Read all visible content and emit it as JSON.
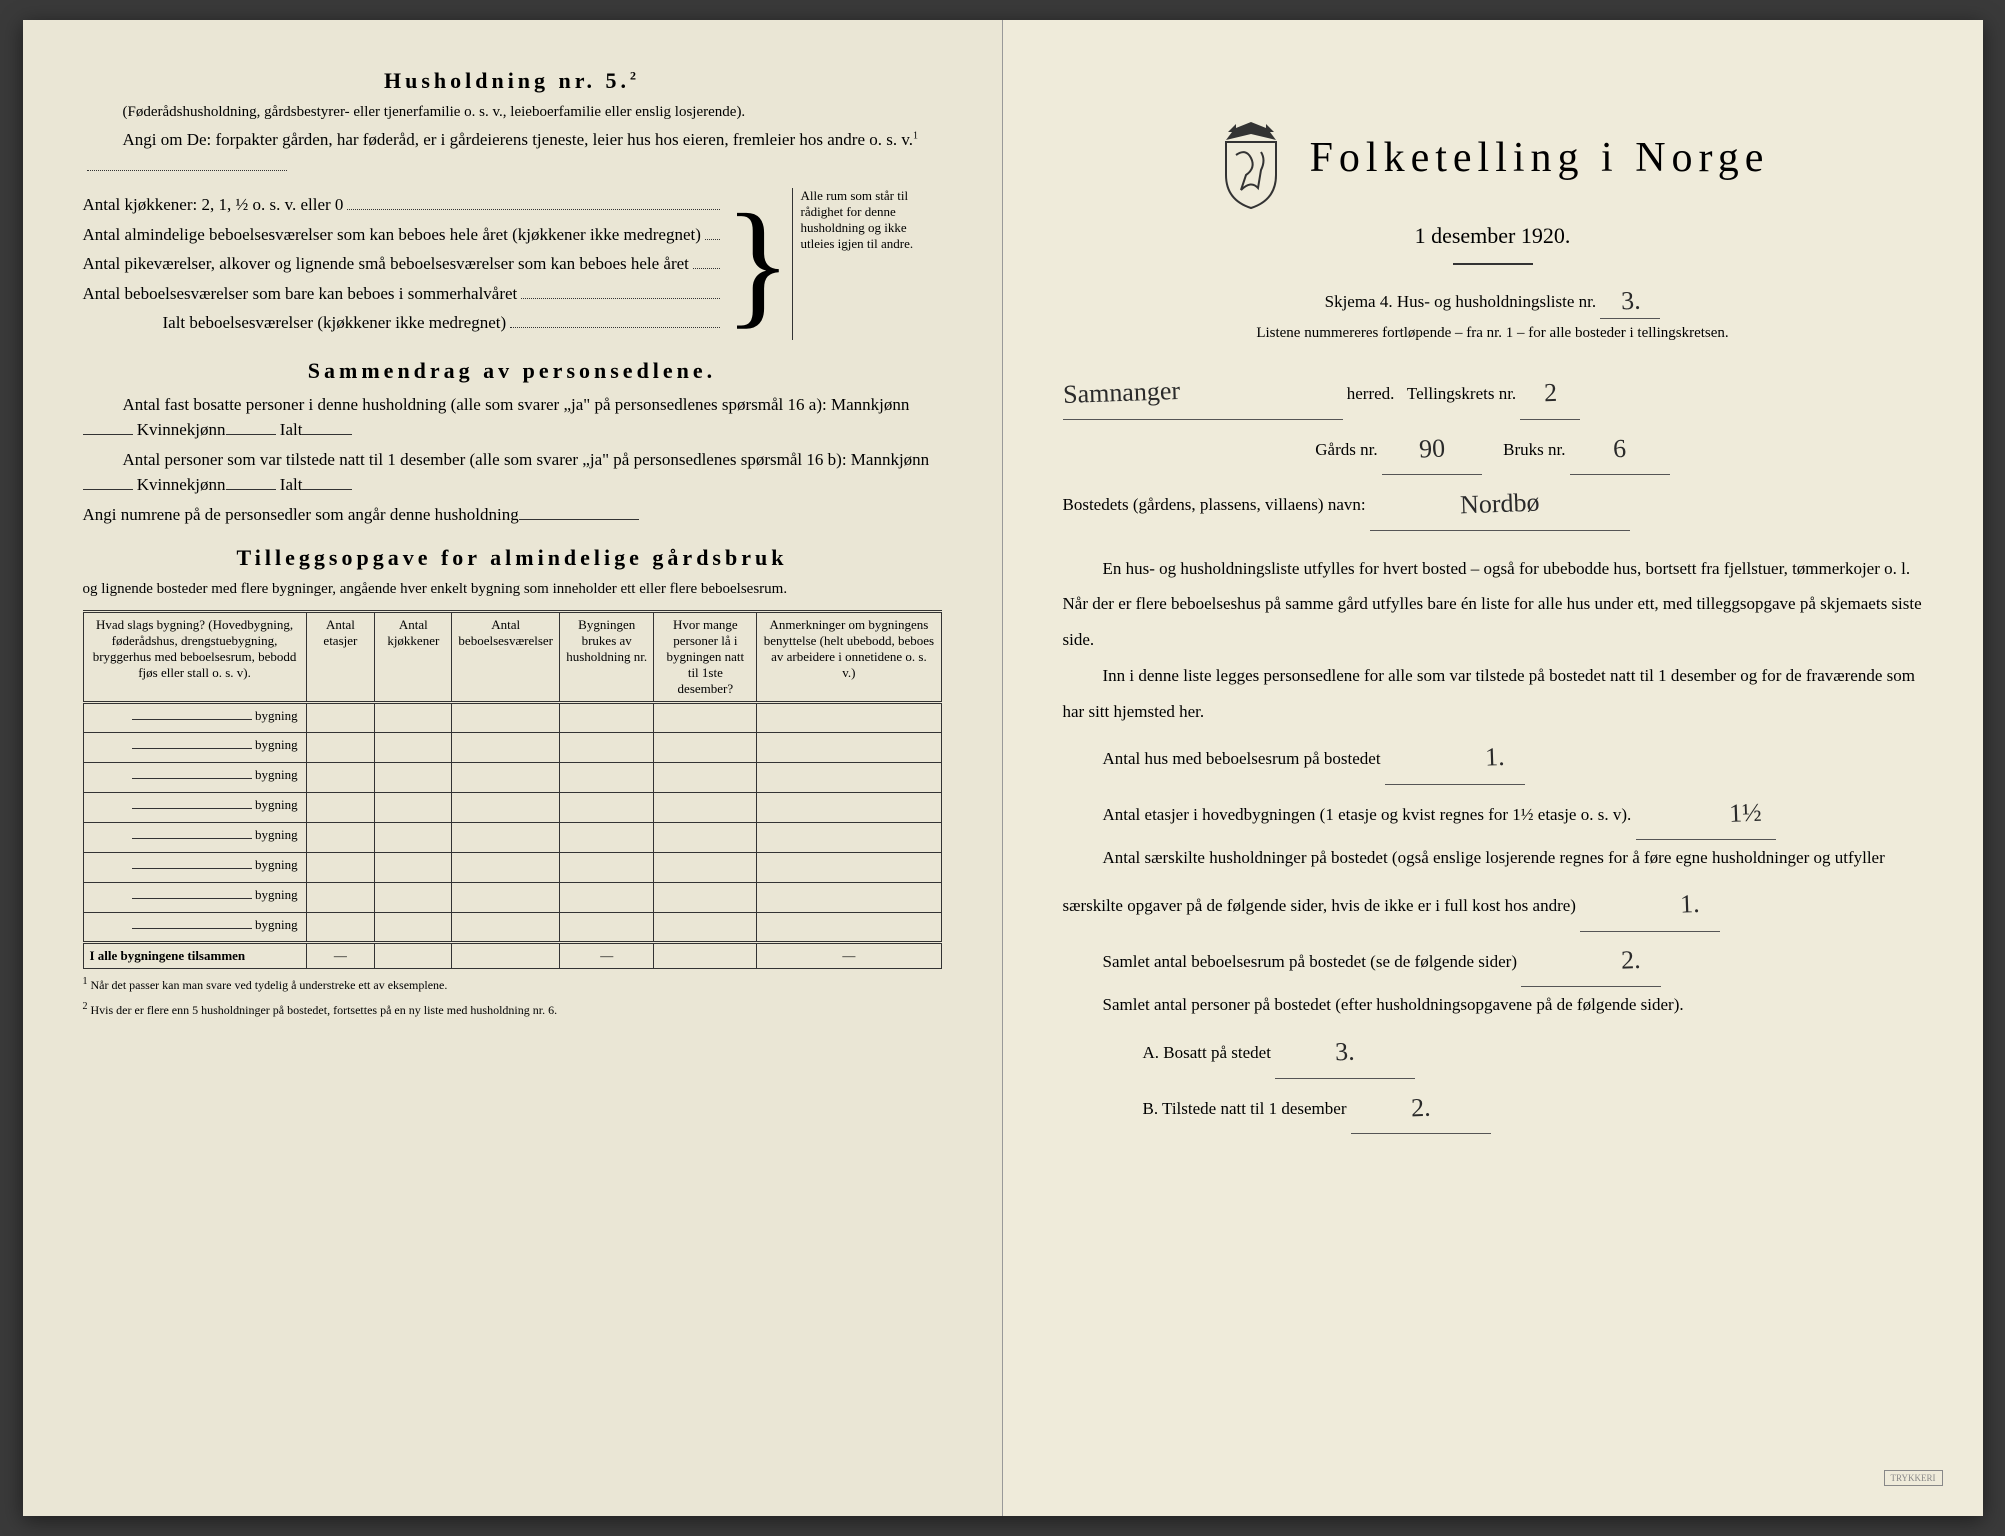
{
  "left": {
    "h5_title": "Husholdning nr. 5.",
    "h5_superscript": "2",
    "h5_sub": "(Føderådshusholdning, gårdsbestyrer- eller tjenerfamilie o. s. v., leieboerfamilie eller enslig losjerende).",
    "angi_line": "Angi om De: forpakter gården, har føderåd, er i gårdeierens tjeneste, leier hus hos eieren, fremleier hos andre o. s. v.",
    "angi_super": "1",
    "kitchens": "Antal kjøkkener: 2, 1, ½ o. s. v. eller 0",
    "rooms_all_year": "Antal almindelige beboelsesværelser som kan beboes hele året (kjøkkener ikke medregnet)",
    "rooms_alcove": "Antal pikeværelser, alkover og lignende små beboelsesværelser som kan beboes hele året",
    "rooms_summer": "Antal beboelsesværelser som bare kan beboes i sommerhalvåret",
    "rooms_total": "Ialt beboelsesværelser (kjøkkener ikke medregnet)",
    "brace_note": "Alle rum som står til rådighet for denne husholdning og ikke utleies igjen til andre.",
    "summary_title": "Sammendrag av personsedlene.",
    "summary_l1": "Antal fast bosatte personer i denne husholdning (alle som svarer „ja\" på personsedlenes spørsmål 16 a): Mannkjønn",
    "summary_kv": "Kvinnekjønn",
    "summary_ialt": "Ialt",
    "summary_l2": "Antal personer som var tilstede natt til 1 desember (alle som svarer „ja\" på personsedlenes spørsmål 16 b): Mannkjønn",
    "summary_l3": "Angi numrene på de personsedler som angår denne husholdning",
    "farm_title": "Tilleggsopgave for almindelige gårdsbruk",
    "farm_sub": "og lignende bosteder med flere bygninger, angående hver enkelt bygning som inneholder ett eller flere beboelsesrum.",
    "table": {
      "cols": [
        "Hvad slags bygning?\n(Hovedbygning, føderådshus, drengstuebygning, bryggerhus med beboelsesrum, bebodd fjøs eller stall o. s. v).",
        "Antal etasjer",
        "Antal kjøkkener",
        "Antal beboelsesværelser",
        "Bygningen brukes av husholdning nr.",
        "Hvor mange personer lå i bygningen natt til 1ste desember?",
        "Anmerkninger om bygningens benyttelse (helt ubebodd, beboes av arbeidere i onnetidene o. s. v.)"
      ],
      "row_label": "bygning",
      "rows": 8,
      "total_label": "I alle bygningene tilsammen"
    },
    "footnote1": "Når det passer kan man svare ved tydelig å understreke ett av eksemplene.",
    "footnote2": "Hvis der er flere enn 5 husholdninger på bostedet, fortsettes på en ny liste med husholdning nr. 6."
  },
  "right": {
    "title": "Folketelling i Norge",
    "date": "1 desember 1920.",
    "form_line": "Skjema 4. Hus- og husholdningsliste nr.",
    "form_nr": "3.",
    "list_note": "Listene nummereres fortløpende – fra nr. 1 – for alle bosteder i tellingskretsen.",
    "herred_label": "herred.",
    "herred_value": "Samnanger",
    "krets_label": "Tellingskrets nr.",
    "krets_value": "2",
    "gards_label": "Gårds nr.",
    "gards_value": "90",
    "bruks_label": "Bruks nr.",
    "bruks_value": "6",
    "bosted_label": "Bostedets (gårdens, plassens, villaens) navn:",
    "bosted_value": "Nordbø",
    "p1": "En hus- og husholdningsliste utfylles for hvert bosted – også for ubebodde hus, bortsett fra fjellstuer, tømmerkojer o. l. Når der er flere beboelseshus på samme gård utfylles bare én liste for alle hus under ett, med tilleggsopgave på skjemaets siste side.",
    "p2": "Inn i denne liste legges personsedlene for alle som var tilstede på bostedet natt til 1 desember og for de fraværende som har sitt hjemsted her.",
    "hus_label": "Antal hus med beboelsesrum på bostedet",
    "hus_value": "1.",
    "etasjer_label": "Antal etasjer i hovedbygningen (1 etasje og kvist regnes for 1½ etasje o. s. v).",
    "etasjer_value": "1½",
    "hush_label": "Antal særskilte husholdninger på bostedet (også enslige losjerende regnes for å føre egne husholdninger og utfyller særskilte opgaver på de følgende sider, hvis de ikke er i full kost hos andre)",
    "hush_value": "1.",
    "rooms_label": "Samlet antal beboelsesrum på bostedet (se de følgende sider)",
    "rooms_value": "2.",
    "persons_label": "Samlet antal personer på bostedet (efter husholdningsopgavene på de følgende sider).",
    "a_label": "A. Bosatt på stedet",
    "a_value": "3.",
    "b_label": "B. Tilstede natt til 1 desember",
    "b_value": "2."
  }
}
